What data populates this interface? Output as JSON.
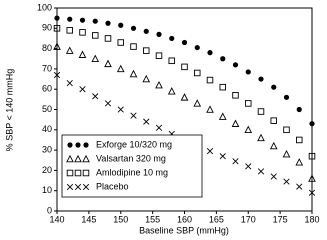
{
  "chart_data": {
    "type": "scatter",
    "xlabel": "Baseline SBP (mmHg)",
    "ylabel": "% SBP < 140 mmHg",
    "x": [
      140,
      142,
      144,
      146,
      148,
      150,
      152,
      154,
      156,
      158,
      160,
      162,
      164,
      166,
      168,
      170,
      172,
      174,
      176,
      178,
      180
    ],
    "series": [
      {
        "name": "Exforge 10/320 mg",
        "color": "#000000",
        "marker": "circle",
        "values": [
          95,
          94.5,
          94,
          93.5,
          92.5,
          91.5,
          90,
          88.5,
          87,
          85,
          83,
          80.5,
          78,
          75,
          72,
          68.5,
          65,
          61,
          56,
          50,
          43
        ]
      },
      {
        "name": "Valsartan 320 mg",
        "color": "#000000",
        "marker": "triangle",
        "values": [
          81,
          79,
          77,
          75,
          72.5,
          70,
          67.5,
          65,
          62,
          59,
          56,
          53,
          50,
          46.5,
          43,
          40,
          36,
          32,
          28,
          24,
          16
        ]
      },
      {
        "name": "Amlodipine 10 mg",
        "color": "#000000",
        "marker": "square",
        "values": [
          90,
          89,
          88,
          86.5,
          85,
          83,
          81,
          79,
          76.5,
          74,
          71,
          68,
          64.5,
          61,
          57,
          53,
          49,
          44.5,
          40,
          35,
          27
        ]
      },
      {
        "name": "Placebo",
        "color": "#000000",
        "marker": "x",
        "values": [
          67,
          63,
          60,
          56.5,
          53,
          50,
          47,
          44,
          41,
          38,
          35,
          32,
          29.5,
          27,
          24.5,
          22,
          19.5,
          17,
          14.5,
          12,
          9
        ]
      }
    ],
    "xlim": [
      140,
      180
    ],
    "xticks": [
      140,
      145,
      150,
      155,
      160,
      165,
      170,
      175,
      180
    ],
    "ylim": [
      0,
      100
    ],
    "yticks": [
      0,
      10,
      20,
      30,
      40,
      50,
      60,
      70,
      80,
      90,
      100
    ],
    "grid": false,
    "legend": "lower left"
  }
}
